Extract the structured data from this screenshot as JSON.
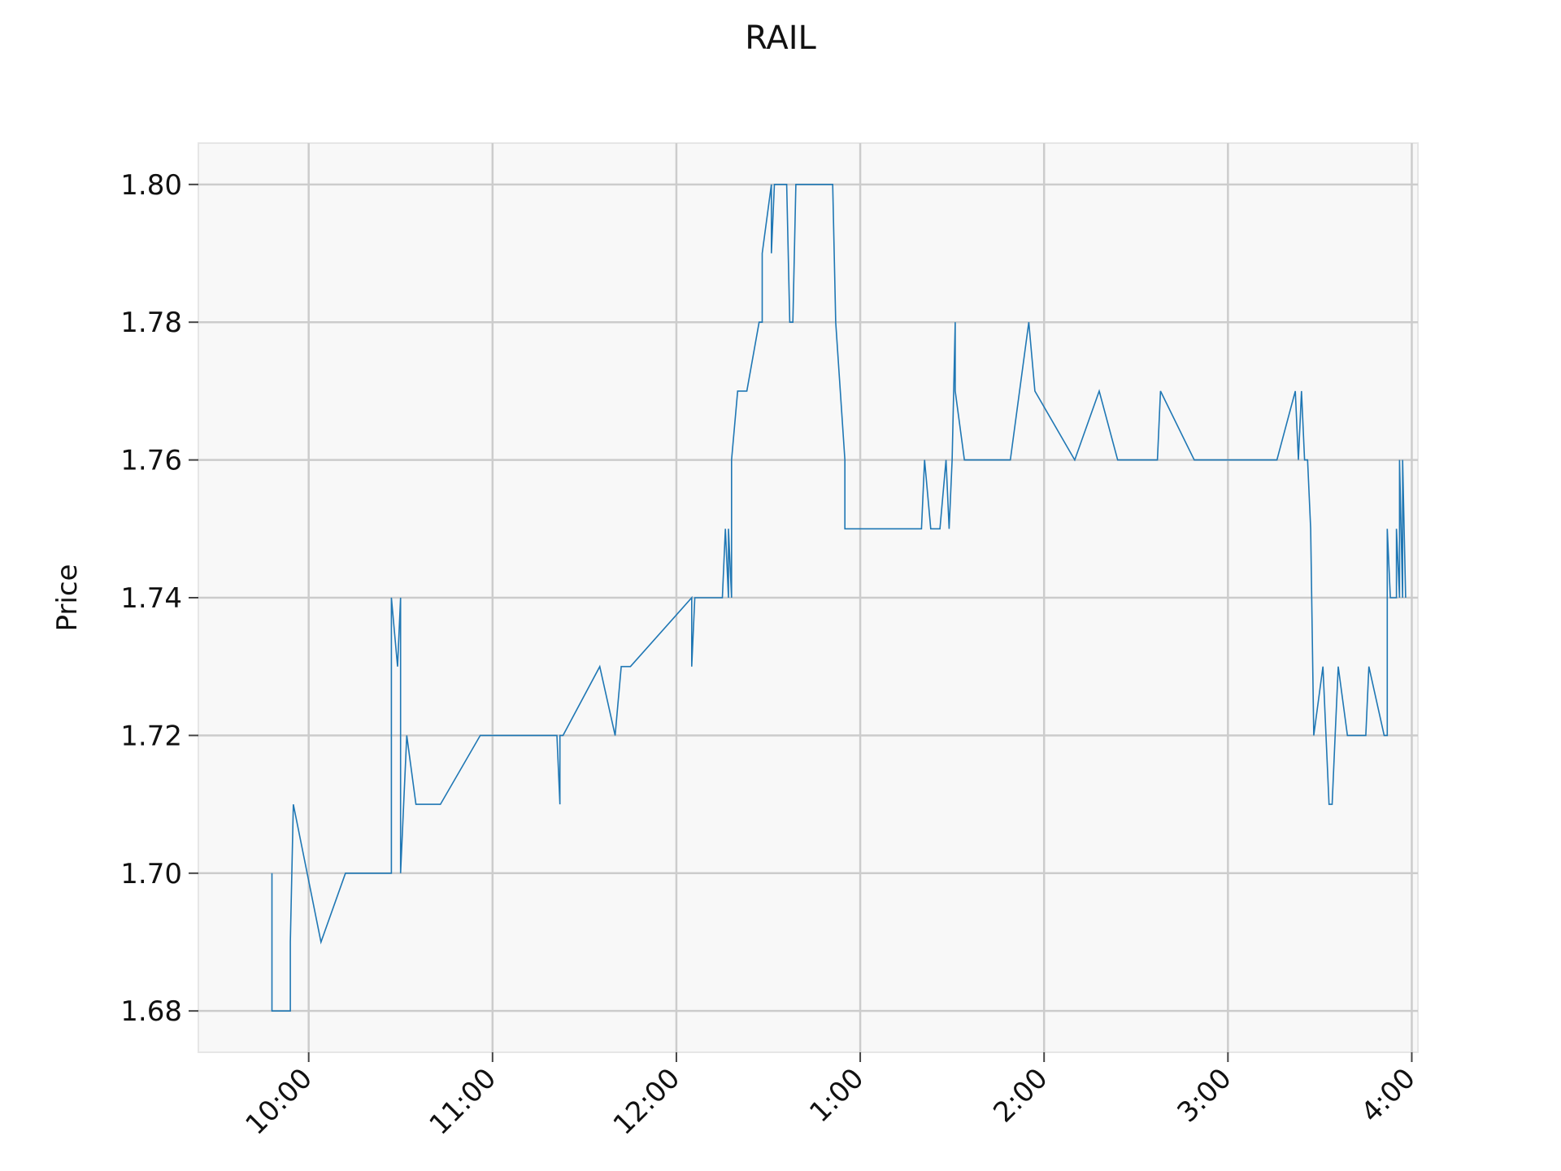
{
  "chart_data": {
    "type": "line",
    "title": "RAIL",
    "xlabel": "",
    "ylabel": "Price",
    "ylim": [
      1.674,
      1.806
    ],
    "xlim": [
      "09:24",
      "16:02"
    ],
    "grid": true,
    "line_color": "#1f77b4",
    "plot_background": "#f8f8f8",
    "grid_color": "#cccccc",
    "y_ticks": [
      {
        "value": 1.68,
        "label": "1.68"
      },
      {
        "value": 1.7,
        "label": "1.70"
      },
      {
        "value": 1.72,
        "label": "1.72"
      },
      {
        "value": 1.74,
        "label": "1.74"
      },
      {
        "value": 1.76,
        "label": "1.76"
      },
      {
        "value": 1.78,
        "label": "1.78"
      },
      {
        "value": 1.8,
        "label": "1.80"
      }
    ],
    "x_ticks": [
      {
        "value": "10:00",
        "label": "10:00"
      },
      {
        "value": "11:00",
        "label": "11:00"
      },
      {
        "value": "12:00",
        "label": "12:00"
      },
      {
        "value": "13:00",
        "label": "1:00"
      },
      {
        "value": "14:00",
        "label": "2:00"
      },
      {
        "value": "15:00",
        "label": "3:00"
      },
      {
        "value": "16:00",
        "label": "4:00"
      }
    ],
    "series": [
      {
        "name": "",
        "x": [
          "09:48",
          "09:48",
          "09:54",
          "09:54",
          "09:55",
          "10:04",
          "10:12",
          "10:27",
          "10:27",
          "10:29",
          "10:30",
          "10:30",
          "10:32",
          "10:35",
          "10:37",
          "10:43",
          "10:56",
          "11:15",
          "11:21",
          "11:22",
          "11:22",
          "11:23",
          "11:35",
          "11:40",
          "11:42",
          "11:42",
          "11:45",
          "12:05",
          "12:05",
          "12:06",
          "12:06",
          "12:14",
          "12:15",
          "12:16",
          "12:17",
          "12:17",
          "12:18",
          "12:18",
          "12:20",
          "12:23",
          "12:23",
          "12:27",
          "12:28",
          "12:28",
          "12:31",
          "12:31",
          "12:32",
          "12:32",
          "12:34",
          "12:35",
          "12:36",
          "12:37",
          "12:38",
          "12:38",
          "12:39",
          "12:39",
          "12:50",
          "12:51",
          "12:51",
          "12:52",
          "12:55",
          "12:55",
          "13:20",
          "13:21",
          "13:23",
          "13:26",
          "13:28",
          "13:29",
          "13:29",
          "13:30",
          "13:31",
          "13:31",
          "13:34",
          "13:49",
          "13:55",
          "13:57",
          "14:10",
          "14:18",
          "14:24",
          "14:31",
          "14:37",
          "14:38",
          "14:49",
          "14:50",
          "14:50",
          "14:51",
          "15:00",
          "15:16",
          "15:22",
          "15:23",
          "15:24",
          "15:25",
          "15:26",
          "15:27",
          "15:27",
          "15:28",
          "15:31",
          "15:33",
          "15:33",
          "15:34",
          "15:35",
          "15:36",
          "15:39",
          "15:39",
          "15:42",
          "15:45",
          "15:46",
          "15:51",
          "15:51",
          "15:52",
          "15:52",
          "15:53",
          "15:55",
          "15:55",
          "15:56",
          "15:56",
          "15:57",
          "15:57",
          "15:58",
          "15:58"
        ],
        "values": [
          1.7,
          1.68,
          1.68,
          1.69,
          1.71,
          1.69,
          1.7,
          1.7,
          1.74,
          1.73,
          1.74,
          1.7,
          1.72,
          1.71,
          1.71,
          1.71,
          1.72,
          1.72,
          1.72,
          1.71,
          1.72,
          1.72,
          1.73,
          1.72,
          1.73,
          1.73,
          1.73,
          1.74,
          1.73,
          1.74,
          1.74,
          1.74,
          1.74,
          1.75,
          1.74,
          1.75,
          1.74,
          1.76,
          1.77,
          1.77,
          1.77,
          1.78,
          1.78,
          1.79,
          1.8,
          1.79,
          1.8,
          1.8,
          1.8,
          1.8,
          1.8,
          1.78,
          1.78,
          1.78,
          1.8,
          1.8,
          1.8,
          1.8,
          1.8,
          1.78,
          1.76,
          1.75,
          1.75,
          1.76,
          1.75,
          1.75,
          1.76,
          1.75,
          1.75,
          1.76,
          1.78,
          1.77,
          1.76,
          1.76,
          1.78,
          1.77,
          1.76,
          1.77,
          1.76,
          1.76,
          1.76,
          1.77,
          1.76,
          1.76,
          1.76,
          1.76,
          1.76,
          1.76,
          1.77,
          1.76,
          1.77,
          1.76,
          1.76,
          1.75,
          1.75,
          1.72,
          1.73,
          1.71,
          1.71,
          1.71,
          1.72,
          1.73,
          1.72,
          1.72,
          1.72,
          1.72,
          1.73,
          1.72,
          1.72,
          1.72,
          1.75,
          1.74,
          1.74,
          1.75,
          1.74,
          1.76,
          1.74,
          1.76,
          1.74,
          1.74
        ]
      }
    ]
  }
}
